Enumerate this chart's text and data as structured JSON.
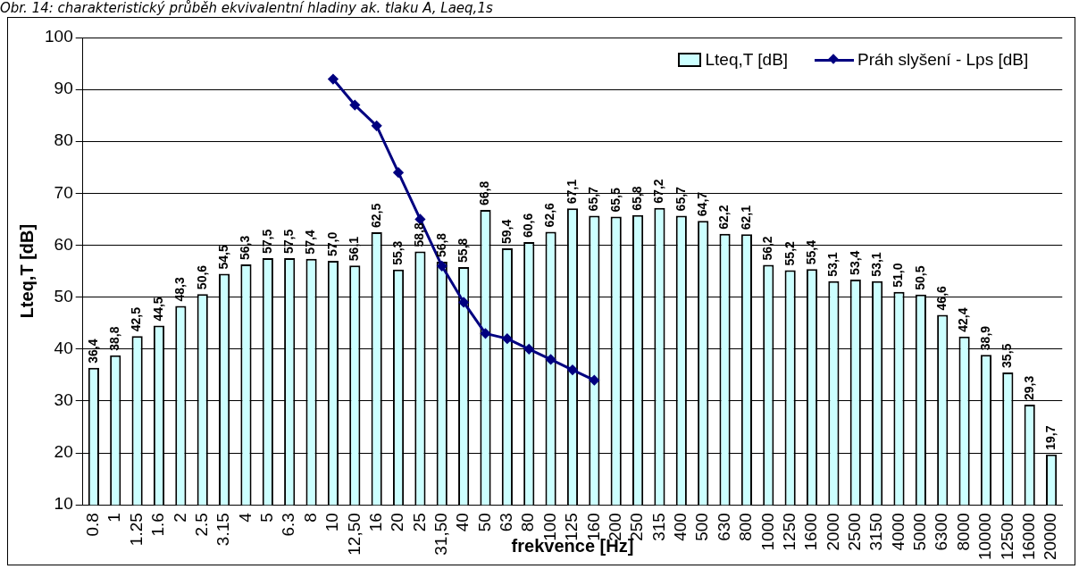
{
  "chart_data": {
    "type": "bar",
    "title": "Obr. 14: charakteristický průběh ekvivalentní hladiny ak. tlaku A, Laeq,1s",
    "xlabel": "frekvence [Hz]",
    "ylabel": "Lteq,T [dB]",
    "categories": [
      "0.8",
      "1",
      "1.25",
      "1.6",
      "2",
      "2.5",
      "3.15",
      "4",
      "5",
      "6.3",
      "8",
      "10",
      "12,50",
      "16",
      "20",
      "25",
      "31,50",
      "40",
      "50",
      "63",
      "80",
      "100",
      "125",
      "160",
      "200",
      "250",
      "315",
      "400",
      "500",
      "630",
      "800",
      "1000",
      "1250",
      "1600",
      "2000",
      "2500",
      "3150",
      "4000",
      "5000",
      "6300",
      "8000",
      "10000",
      "12500",
      "16000",
      "20000"
    ],
    "series": [
      {
        "name": "Lteq,T [dB]",
        "color": "#ccffff",
        "values": [
          36.4,
          38.8,
          42.5,
          44.5,
          48.3,
          50.6,
          54.5,
          56.3,
          57.5,
          57.5,
          57.4,
          57.0,
          56.1,
          62.5,
          55.3,
          58.8,
          56.8,
          55.8,
          66.8,
          59.4,
          60.6,
          62.6,
          67.1,
          65.7,
          65.5,
          65.8,
          67.2,
          65.7,
          64.7,
          62.2,
          62.1,
          56.2,
          55.2,
          55.4,
          53.1,
          53.4,
          53.1,
          51.0,
          50.5,
          46.6,
          42.4,
          38.9,
          35.5,
          29.3,
          19.7
        ],
        "value_labels": [
          "36,4",
          "38,8",
          "42,5",
          "44,5",
          "48,3",
          "50,6",
          "54,5",
          "56,3",
          "57,5",
          "57,5",
          "57,4",
          "57,0",
          "56,1",
          "62,5",
          "55,3",
          "58,8",
          "56,8",
          "55,8",
          "66,8",
          "59,4",
          "60,6",
          "62,6",
          "67,1",
          "65,7",
          "65,5",
          "65,8",
          "67,2",
          "65,7",
          "64,7",
          "62,2",
          "62,1",
          "56,2",
          "55,2",
          "55,4",
          "53,1",
          "53,4",
          "53,1",
          "51,0",
          "50,5",
          "46,6",
          "42,4",
          "38,9",
          "35,5",
          "29,3",
          "19,7"
        ]
      },
      {
        "name": "Práh slyšení - Lps [dB]",
        "type": "line",
        "color": "#000080",
        "marker": "diamond",
        "values": [
          null,
          null,
          null,
          null,
          null,
          null,
          null,
          null,
          null,
          null,
          null,
          92,
          87,
          83,
          74,
          65,
          56,
          49,
          43,
          42,
          40,
          38,
          36,
          34,
          null,
          null,
          null,
          null,
          null,
          null,
          null,
          null,
          null,
          null,
          null,
          null,
          null,
          null,
          null,
          null,
          null,
          null,
          null,
          null,
          null
        ]
      }
    ],
    "ylim": [
      10,
      100
    ],
    "yticks": [
      10,
      20,
      30,
      40,
      50,
      60,
      70,
      80,
      90,
      100
    ],
    "grid": "y",
    "legend": "top right"
  }
}
